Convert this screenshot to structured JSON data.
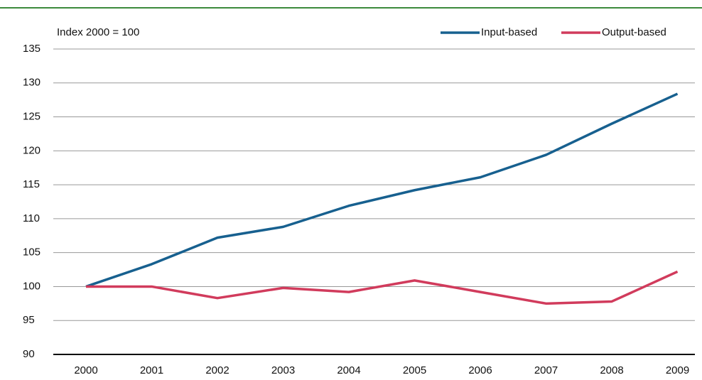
{
  "chart_data": {
    "type": "line",
    "annotation": "Index 2000 = 100",
    "categories": [
      "2000",
      "2001",
      "2002",
      "2003",
      "2004",
      "2005",
      "2006",
      "2007",
      "2008",
      "2009"
    ],
    "series": [
      {
        "name": "Input-based",
        "color": "#17608f",
        "values": [
          100,
          103.3,
          107.2,
          108.8,
          111.9,
          114.2,
          116.1,
          119.4,
          124.0,
          128.4
        ]
      },
      {
        "name": "Output-based",
        "color": "#d13b5c",
        "values": [
          100,
          100.0,
          98.3,
          99.8,
          99.2,
          100.9,
          99.2,
          97.5,
          97.8,
          102.2
        ]
      }
    ],
    "ylim": [
      90,
      135
    ],
    "yticks": [
      90,
      95,
      100,
      105,
      110,
      115,
      120,
      125,
      130,
      135
    ],
    "grid": true,
    "legend": "top-right"
  }
}
